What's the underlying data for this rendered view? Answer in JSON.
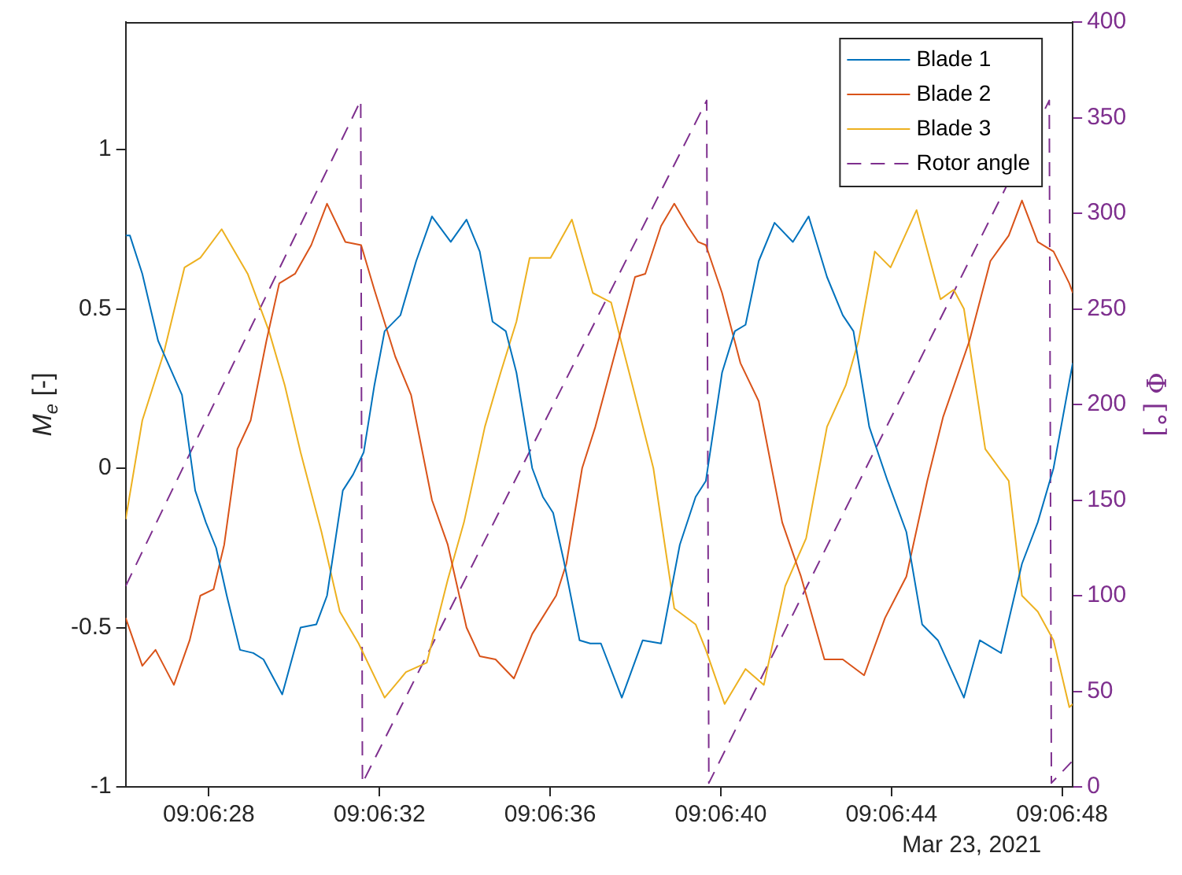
{
  "chart_data": {
    "type": "line",
    "xlabel": null,
    "ylabel": "M$_{e}$ [-]",
    "y2label": "Φ [°]",
    "xlim": [
      "2021-03-23T09:06:26.05",
      "2021-03-23T09:06:48.25"
    ],
    "xticks": [
      {
        "value": "2021-03-23T09:06:28",
        "label": "09:06:28"
      },
      {
        "value": "2021-03-23T09:06:32",
        "label": "09:06:32"
      },
      {
        "value": "2021-03-23T09:06:36",
        "label": "09:06:36"
      },
      {
        "value": "2021-03-23T09:06:40",
        "label": "09:06:40"
      },
      {
        "value": "2021-03-23T09:06:44",
        "label": "09:06:44"
      },
      {
        "value": "2021-03-23T09:06:48",
        "label": "09:06:48"
      }
    ],
    "ylim": [
      -1,
      1.4
    ],
    "yticks": [
      -1,
      -0.5,
      0,
      0.5,
      1
    ],
    "y2lim": [
      0,
      400
    ],
    "y2ticks": [
      0,
      50,
      100,
      150,
      200,
      250,
      300,
      350,
      400
    ],
    "grid": false,
    "legend": "top right",
    "annotations": [
      "Mar 23, 2021"
    ],
    "series": [
      {
        "name": "Blade 1",
        "color": "#0072bd",
        "x": [
          "2021-03-23T09:06:26.05",
          "2021-03-23T09:06:26.15",
          "2021-03-23T09:06:26.44",
          "2021-03-23T09:06:26.81",
          "2021-03-23T09:06:26.94",
          "2021-03-23T09:06:27.37",
          "2021-03-23T09:06:27.68",
          "2021-03-23T09:06:27.93",
          "2021-03-23T09:06:28.17",
          "2021-03-23T09:06:28.42",
          "2021-03-23T09:06:28.73",
          "2021-03-23T09:06:29.04",
          "2021-03-23T09:06:29.28",
          "2021-03-23T09:06:29.72",
          "2021-03-23T09:06:30.15",
          "2021-03-23T09:06:30.52",
          "2021-03-23T09:06:30.77",
          "2021-03-23T09:06:31.14",
          "2021-03-23T09:06:31.38",
          "2021-03-23T09:06:31.63",
          "2021-03-23T09:06:31.88",
          "2021-03-23T09:06:32.12",
          "2021-03-23T09:06:32.49",
          "2021-03-23T09:06:32.86",
          "2021-03-23T09:06:33.23",
          "2021-03-23T09:06:33.67",
          "2021-03-23T09:06:34.04",
          "2021-03-23T09:06:34.35",
          "2021-03-23T09:06:34.65",
          "2021-03-23T09:06:34.96",
          "2021-03-23T09:06:35.21",
          "2021-03-23T09:06:35.58",
          "2021-03-23T09:06:35.83",
          "2021-03-23T09:06:36.07",
          "2021-03-23T09:06:36.32",
          "2021-03-23T09:06:36.69",
          "2021-03-23T09:06:36.94",
          "2021-03-23T09:06:37.19",
          "2021-03-23T09:06:37.68",
          "2021-03-23T09:06:38.17",
          "2021-03-23T09:06:38.60",
          "2021-03-23T09:06:39.04",
          "2021-03-23T09:06:39.41",
          "2021-03-23T09:06:39.65",
          "2021-03-23T09:06:40.03",
          "2021-03-23T09:06:40.33",
          "2021-03-23T09:06:40.58",
          "2021-03-23T09:06:40.89",
          "2021-03-23T09:06:41.26",
          "2021-03-23T09:06:41.69",
          "2021-03-23T09:06:42.06",
          "2021-03-23T09:06:42.49",
          "2021-03-23T09:06:42.86",
          "2021-03-23T09:06:43.11",
          "2021-03-23T09:06:43.48",
          "2021-03-23T09:06:43.91",
          "2021-03-23T09:06:44.35",
          "2021-03-23T09:06:44.72",
          "2021-03-23T09:06:45.09",
          "2021-03-23T09:06:45.70",
          "2021-03-23T09:06:46.07",
          "2021-03-23T09:06:46.57",
          "2021-03-23T09:06:47.06",
          "2021-03-23T09:06:47.43",
          "2021-03-23T09:06:47.80",
          "2021-03-23T09:06:48.25"
        ],
        "values": [
          0.73,
          0.73,
          0.61,
          0.4,
          0.36,
          0.23,
          -0.07,
          -0.17,
          -0.25,
          -0.4,
          -0.57,
          -0.58,
          -0.6,
          -0.71,
          -0.5,
          -0.49,
          -0.4,
          -0.07,
          -0.02,
          0.05,
          0.26,
          0.43,
          0.48,
          0.65,
          0.79,
          0.71,
          0.78,
          0.68,
          0.46,
          0.43,
          0.3,
          0,
          -0.09,
          -0.14,
          -0.29,
          -0.54,
          -0.55,
          -0.55,
          -0.72,
          -0.54,
          -0.55,
          -0.24,
          -0.09,
          -0.04,
          0.3,
          0.43,
          0.45,
          0.65,
          0.77,
          0.71,
          0.79,
          0.6,
          0.48,
          0.43,
          0.13,
          -0.04,
          -0.2,
          -0.49,
          -0.54,
          -0.72,
          -0.54,
          -0.58,
          -0.3,
          -0.17,
          0,
          0.33
        ]
      },
      {
        "name": "Blade 2",
        "color": "#d95319",
        "x": [
          "2021-03-23T09:06:26.05",
          "2021-03-23T09:06:26.44",
          "2021-03-23T09:06:26.75",
          "2021-03-23T09:06:27.18",
          "2021-03-23T09:06:27.55",
          "2021-03-23T09:06:27.80",
          "2021-03-23T09:06:28.11",
          "2021-03-23T09:06:28.36",
          "2021-03-23T09:06:28.67",
          "2021-03-23T09:06:28.98",
          "2021-03-23T09:06:29.35",
          "2021-03-23T09:06:29.65",
          "2021-03-23T09:06:30.02",
          "2021-03-23T09:06:30.40",
          "2021-03-23T09:06:30.77",
          "2021-03-23T09:06:31.20",
          "2021-03-23T09:06:31.57",
          "2021-03-23T09:06:31.88",
          "2021-03-23T09:06:32.37",
          "2021-03-23T09:06:32.74",
          "2021-03-23T09:06:33.23",
          "2021-03-23T09:06:33.60",
          "2021-03-23T09:06:34.04",
          "2021-03-23T09:06:34.35",
          "2021-03-23T09:06:34.72",
          "2021-03-23T09:06:35.15",
          "2021-03-23T09:06:35.58",
          "2021-03-23T09:06:36.14",
          "2021-03-23T09:06:36.38",
          "2021-03-23T09:06:36.75",
          "2021-03-23T09:06:37.06",
          "2021-03-23T09:06:37.56",
          "2021-03-23T09:06:37.99",
          "2021-03-23T09:06:38.23",
          "2021-03-23T09:06:38.60",
          "2021-03-23T09:06:38.91",
          "2021-03-23T09:06:39.22",
          "2021-03-23T09:06:39.47",
          "2021-03-23T09:06:39.65",
          "2021-03-23T09:06:40.03",
          "2021-03-23T09:06:40.46",
          "2021-03-23T09:06:40.89",
          "2021-03-23T09:06:41.44",
          "2021-03-23T09:06:41.88",
          "2021-03-23T09:06:42.43",
          "2021-03-23T09:06:42.86",
          "2021-03-23T09:06:43.36",
          "2021-03-23T09:06:43.85",
          "2021-03-23T09:06:44.35",
          "2021-03-23T09:06:44.84",
          "2021-03-23T09:06:45.21",
          "2021-03-23T09:06:45.83",
          "2021-03-23T09:06:46.32",
          "2021-03-23T09:06:46.75",
          "2021-03-23T09:06:47.06",
          "2021-03-23T09:06:47.43",
          "2021-03-23T09:06:47.80",
          "2021-03-23T09:06:48.17",
          "2021-03-23T09:06:48.25"
        ],
        "values": [
          -0.47,
          -0.62,
          -0.57,
          -0.68,
          -0.54,
          -0.4,
          -0.38,
          -0.24,
          0.06,
          0.15,
          0.4,
          0.58,
          0.61,
          0.7,
          0.83,
          0.71,
          0.7,
          0.56,
          0.35,
          0.23,
          -0.1,
          -0.24,
          -0.5,
          -0.59,
          -0.6,
          -0.66,
          -0.52,
          -0.4,
          -0.3,
          0,
          0.13,
          0.38,
          0.6,
          0.61,
          0.76,
          0.83,
          0.76,
          0.71,
          0.7,
          0.55,
          0.33,
          0.21,
          -0.17,
          -0.34,
          -0.6,
          -0.6,
          -0.65,
          -0.47,
          -0.34,
          -0.04,
          0.16,
          0.4,
          0.65,
          0.73,
          0.84,
          0.71,
          0.68,
          0.58,
          0.55
        ]
      },
      {
        "name": "Blade 3",
        "color": "#edb120",
        "x": [
          "2021-03-23T09:06:26.05",
          "2021-03-23T09:06:26.44",
          "2021-03-23T09:06:26.94",
          "2021-03-23T09:06:27.43",
          "2021-03-23T09:06:27.80",
          "2021-03-23T09:06:28.30",
          "2021-03-23T09:06:28.91",
          "2021-03-23T09:06:29.41",
          "2021-03-23T09:06:29.78",
          "2021-03-23T09:06:30.15",
          "2021-03-23T09:06:30.64",
          "2021-03-23T09:06:31.07",
          "2021-03-23T09:06:31.51",
          "2021-03-23T09:06:32.12",
          "2021-03-23T09:06:32.62",
          "2021-03-23T09:06:33.11",
          "2021-03-23T09:06:33.60",
          "2021-03-23T09:06:33.98",
          "2021-03-23T09:06:34.47",
          "2021-03-23T09:06:34.84",
          "2021-03-23T09:06:35.21",
          "2021-03-23T09:06:35.52",
          "2021-03-23T09:06:36.01",
          "2021-03-23T09:06:36.51",
          "2021-03-23T09:06:37.00",
          "2021-03-23T09:06:37.43",
          "2021-03-23T09:06:37.93",
          "2021-03-23T09:06:38.42",
          "2021-03-23T09:06:38.91",
          "2021-03-23T09:06:39.41",
          "2021-03-23T09:06:39.65",
          "2021-03-23T09:06:40.09",
          "2021-03-23T09:06:40.58",
          "2021-03-23T09:06:41.01",
          "2021-03-23T09:06:41.51",
          "2021-03-23T09:06:42.00",
          "2021-03-23T09:06:42.49",
          "2021-03-23T09:06:42.93",
          "2021-03-23T09:06:43.23",
          "2021-03-23T09:06:43.61",
          "2021-03-23T09:06:43.98",
          "2021-03-23T09:06:44.59",
          "2021-03-23T09:06:45.15",
          "2021-03-23T09:06:45.46",
          "2021-03-23T09:06:45.70",
          "2021-03-23T09:06:46.20",
          "2021-03-23T09:06:46.75",
          "2021-03-23T09:06:47.06",
          "2021-03-23T09:06:47.43",
          "2021-03-23T09:06:47.80",
          "2021-03-23T09:06:48.17",
          "2021-03-23T09:06:48.25"
        ],
        "values": [
          -0.16,
          0.15,
          0.36,
          0.63,
          0.66,
          0.75,
          0.61,
          0.43,
          0.26,
          0.05,
          -0.2,
          -0.45,
          -0.55,
          -0.72,
          -0.64,
          -0.61,
          -0.35,
          -0.17,
          0.13,
          0.3,
          0.46,
          0.66,
          0.66,
          0.78,
          0.55,
          0.52,
          0.26,
          0,
          -0.44,
          -0.49,
          -0.57,
          -0.74,
          -0.63,
          -0.68,
          -0.37,
          -0.22,
          0.13,
          0.26,
          0.4,
          0.68,
          0.63,
          0.81,
          0.53,
          0.56,
          0.5,
          0.06,
          -0.04,
          -0.4,
          -0.45,
          -0.54,
          -0.75,
          -0.74
        ]
      },
      {
        "name": "Rotor angle",
        "color": "#7e2f8e",
        "axis": "y2",
        "line_style": "dashed",
        "x": [
          "2021-03-23T09:06:26.05",
          "2021-03-23T09:06:31.56",
          "2021-03-23T09:06:31.60",
          "2021-03-23T09:06:39.67",
          "2021-03-23T09:06:39.72",
          "2021-03-23T09:06:47.70",
          "2021-03-23T09:06:47.75",
          "2021-03-23T09:06:48.22"
        ],
        "values": [
          105,
          359,
          2,
          359,
          2,
          359,
          2,
          13
        ]
      }
    ]
  }
}
